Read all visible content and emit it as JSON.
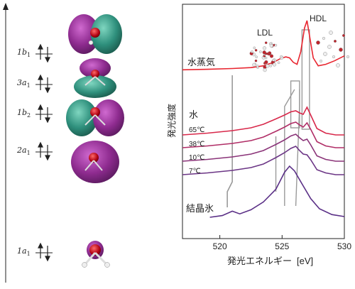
{
  "orbitals": [
    {
      "label": "1b",
      "sub": "1"
    },
    {
      "label": "3a",
      "sub": "1"
    },
    {
      "label": "1b",
      "sub": "2"
    },
    {
      "label": "2a",
      "sub": "1"
    },
    {
      "label": "1a",
      "sub": "1"
    }
  ],
  "colors": {
    "vapor": "#e8252f",
    "t65": "#d8284a",
    "t38": "#b02d66",
    "t10": "#8a3378",
    "t7": "#6b3585",
    "ice": "#5a2f86",
    "orbital_purple": "#8e2b8f",
    "orbital_teal": "#2e8f7c",
    "guide": "#9a9a9a"
  },
  "chart_data": {
    "type": "line",
    "xlabel": "発光エネルギー",
    "xunit": "[eV]",
    "ylabel": "発光強度",
    "xlim": [
      517,
      530
    ],
    "xticks": [
      520,
      525,
      530
    ],
    "tick_labels": [
      "520",
      "525",
      "530"
    ],
    "annotations": {
      "ldl": "LDL",
      "hdl": "HDL",
      "vapor": "水蒸気",
      "water": "水",
      "ice": "結晶氷"
    },
    "series": [
      {
        "key": "vapor",
        "name": "水蒸気",
        "points": [
          [
            517,
            0.62
          ],
          [
            519,
            0.64
          ],
          [
            521,
            0.67
          ],
          [
            522.5,
            0.71
          ],
          [
            523.5,
            0.78
          ],
          [
            524.3,
            0.92
          ],
          [
            524.9,
            1.08
          ],
          [
            525.3,
            1.14
          ],
          [
            525.6,
            1.1
          ],
          [
            525.9,
            0.92
          ],
          [
            526.2,
            0.84
          ],
          [
            526.5,
            1.35
          ],
          [
            526.8,
            2.3
          ],
          [
            527.0,
            2.6
          ],
          [
            527.2,
            2.0
          ],
          [
            527.5,
            1.1
          ],
          [
            527.9,
            0.78
          ],
          [
            528.5,
            0.84
          ],
          [
            529.2,
            0.98
          ],
          [
            530,
            1.18
          ]
        ]
      },
      {
        "name": "65℃",
        "key": "t65",
        "points": [
          [
            517,
            0.0
          ],
          [
            519,
            0.05
          ],
          [
            521,
            0.12
          ],
          [
            522.5,
            0.2
          ],
          [
            523.5,
            0.3
          ],
          [
            524.5,
            0.45
          ],
          [
            525.2,
            0.56
          ],
          [
            525.7,
            0.65
          ],
          [
            526.1,
            0.68
          ],
          [
            526.4,
            0.62
          ],
          [
            526.7,
            0.58
          ],
          [
            527.0,
            0.78
          ],
          [
            527.3,
            0.56
          ],
          [
            527.8,
            0.18
          ],
          [
            528.5,
            0.05
          ],
          [
            529.3,
            0.0
          ],
          [
            530,
            0.0
          ]
        ]
      },
      {
        "name": "38℃",
        "key": "t38",
        "points": [
          [
            517,
            0.0
          ],
          [
            519,
            0.05
          ],
          [
            521,
            0.12
          ],
          [
            522.5,
            0.2
          ],
          [
            523.5,
            0.3
          ],
          [
            524.5,
            0.46
          ],
          [
            525.2,
            0.58
          ],
          [
            525.7,
            0.68
          ],
          [
            526.1,
            0.72
          ],
          [
            526.4,
            0.64
          ],
          [
            526.7,
            0.58
          ],
          [
            527.0,
            0.7
          ],
          [
            527.3,
            0.52
          ],
          [
            527.8,
            0.17
          ],
          [
            528.5,
            0.05
          ],
          [
            529.3,
            0.0
          ],
          [
            530,
            0.0
          ]
        ]
      },
      {
        "name": "10℃",
        "key": "t10",
        "points": [
          [
            517,
            0.0
          ],
          [
            519,
            0.05
          ],
          [
            521,
            0.12
          ],
          [
            522.5,
            0.2
          ],
          [
            523.5,
            0.3
          ],
          [
            524.5,
            0.47
          ],
          [
            525.2,
            0.6
          ],
          [
            525.7,
            0.71
          ],
          [
            526.1,
            0.76
          ],
          [
            526.4,
            0.66
          ],
          [
            526.7,
            0.58
          ],
          [
            527.0,
            0.62
          ],
          [
            527.3,
            0.46
          ],
          [
            527.8,
            0.15
          ],
          [
            528.5,
            0.05
          ],
          [
            529.3,
            0.0
          ],
          [
            530,
            0.0
          ]
        ]
      },
      {
        "name": "7℃",
        "key": "t7",
        "points": [
          [
            517,
            0.0
          ],
          [
            519,
            0.05
          ],
          [
            521,
            0.12
          ],
          [
            522.5,
            0.2
          ],
          [
            523.5,
            0.3
          ],
          [
            524.5,
            0.48
          ],
          [
            525.2,
            0.62
          ],
          [
            525.7,
            0.74
          ],
          [
            526.1,
            0.8
          ],
          [
            526.4,
            0.68
          ],
          [
            526.7,
            0.58
          ],
          [
            527.0,
            0.56
          ],
          [
            527.3,
            0.42
          ],
          [
            527.8,
            0.14
          ],
          [
            528.5,
            0.05
          ],
          [
            529.3,
            0.0
          ],
          [
            530,
            0.0
          ]
        ]
      },
      {
        "name": "結晶氷",
        "key": "ice",
        "points": [
          [
            519.2,
            0.0
          ],
          [
            520.2,
            0.05
          ],
          [
            521.0,
            0.18
          ],
          [
            521.6,
            0.1
          ],
          [
            522.5,
            0.22
          ],
          [
            523.5,
            0.45
          ],
          [
            524.5,
            0.82
          ],
          [
            525.2,
            1.32
          ],
          [
            525.6,
            1.5
          ],
          [
            526.0,
            1.36
          ],
          [
            526.6,
            0.98
          ],
          [
            527.3,
            0.55
          ],
          [
            528.0,
            0.25
          ],
          [
            529.0,
            0.08
          ],
          [
            530,
            0.02
          ]
        ]
      }
    ]
  }
}
